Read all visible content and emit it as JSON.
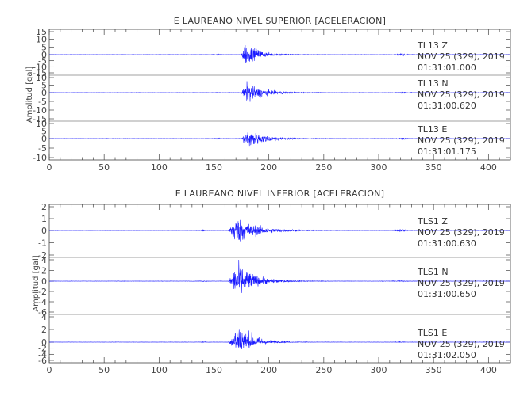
{
  "chart_data": [
    {
      "type": "line",
      "title": "E LAUREANO NIVEL SUPERIOR [ACELERACION]",
      "ylabel": "Amplitud [gal]",
      "xlim": [
        0,
        420
      ],
      "x_ticks": [
        "0",
        "50",
        "100",
        "150",
        "200",
        "250",
        "300",
        "350",
        "400"
      ],
      "panels": [
        {
          "station": "TL13",
          "component": "Z",
          "date": "NOV 25 (329), 2019",
          "time": "01:31:01.000",
          "ylim": [
            -15,
            15
          ],
          "y_ticks": [
            "15",
            "10",
            "5",
            "0",
            "-5",
            "-10",
            "-15"
          ],
          "pga": 15,
          "onset": 175,
          "peak_t": 178,
          "decay": 12,
          "pre_events": [
            {
              "t": 153,
              "a": 0.8
            }
          ],
          "post_events": [
            {
              "t": 322,
              "a": 1.5
            }
          ],
          "noise": 0.2
        },
        {
          "station": "TL13",
          "component": "N",
          "date": "NOV 25 (329), 2019",
          "time": "01:31:00.620",
          "ylim": [
            -15,
            10
          ],
          "y_ticks": [
            "10",
            "5",
            "0",
            "-5",
            "-10",
            "-15"
          ],
          "pga": 11,
          "onset": 175,
          "peak_t": 180,
          "decay": 14,
          "pre_events": [
            {
              "t": 153,
              "a": 0.4
            }
          ],
          "post_events": [
            {
              "t": 322,
              "a": 0.6
            }
          ],
          "noise": 0.2
        },
        {
          "station": "TL13",
          "component": "E",
          "date": "NOV 25 (329), 2019",
          "time": "01:31:01.175",
          "ylim": [
            -10,
            10
          ],
          "y_ticks": [
            "10",
            "5",
            "0",
            "-5",
            "-10"
          ],
          "pga": 10,
          "onset": 175,
          "peak_t": 181,
          "decay": 14,
          "pre_events": [
            {
              "t": 153,
              "a": 0.5
            }
          ],
          "post_events": [
            {
              "t": 322,
              "a": 0.8
            }
          ],
          "noise": 0.2
        }
      ]
    },
    {
      "type": "line",
      "title": "E LAUREANO NIVEL INFERIOR [ACELERACION]",
      "ylabel": "Amplitud [gal]",
      "xlim": [
        0,
        420
      ],
      "x_ticks": [
        "0",
        "50",
        "100",
        "150",
        "200",
        "250",
        "300",
        "350",
        "400"
      ],
      "panels": [
        {
          "station": "TLS1",
          "component": "Z",
          "date": "NOV 25 (329), 2019",
          "time": "01:31:00.630",
          "ylim": [
            -2,
            2
          ],
          "y_ticks": [
            "2",
            "1",
            "0",
            "-1",
            "-2"
          ],
          "pga": 2,
          "onset": 163,
          "peak_t": 170,
          "decay": 18,
          "pre_events": [
            {
              "t": 140,
              "a": 0.1
            }
          ],
          "post_events": [
            {
              "t": 320,
              "a": 0.2
            }
          ],
          "noise": 0.02
        },
        {
          "station": "TLS1",
          "component": "N",
          "date": "NOV 25 (329), 2019",
          "time": "01:31:00.650",
          "ylim": [
            -6,
            4
          ],
          "y_ticks": [
            "4",
            "2",
            "0",
            "-2",
            "-4",
            "-6"
          ],
          "pga": 6,
          "onset": 163,
          "peak_t": 172,
          "decay": 14,
          "pre_events": [
            {
              "t": 140,
              "a": 0.15
            }
          ],
          "post_events": [
            {
              "t": 320,
              "a": 0.15
            }
          ],
          "noise": 0.05
        },
        {
          "station": "TLS1",
          "component": "E",
          "date": "NOV 25 (329), 2019",
          "time": "01:31:02.050",
          "ylim": [
            -6,
            4
          ],
          "y_ticks": [
            "4",
            "2",
            "0",
            "-2",
            "-4",
            "-6"
          ],
          "pga": 6,
          "onset": 163,
          "peak_t": 173,
          "decay": 12,
          "pre_events": [
            {
              "t": 140,
              "a": 0.15
            }
          ],
          "post_events": [
            {
              "t": 320,
              "a": 0.15
            }
          ],
          "noise": 0.05
        }
      ]
    }
  ]
}
